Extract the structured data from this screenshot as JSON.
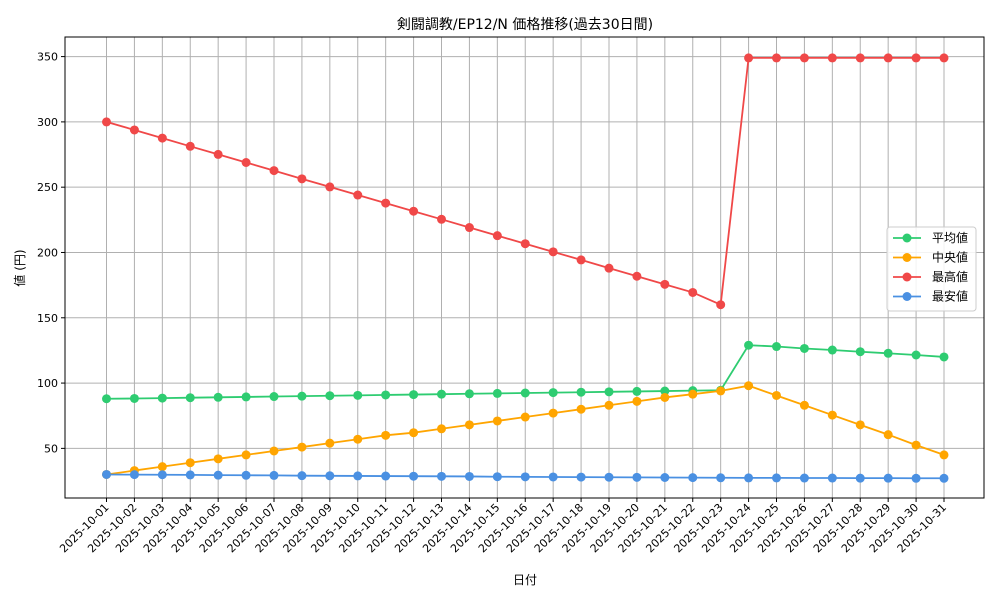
{
  "chart_data": {
    "type": "line",
    "title": "剣闘調教/EP12/N 価格推移(過去30日間)",
    "xlabel": "日付",
    "ylabel": "値 (円)",
    "categories": [
      "2025-10-01",
      "2025-10-02",
      "2025-10-03",
      "2025-10-04",
      "2025-10-05",
      "2025-10-06",
      "2025-10-07",
      "2025-10-08",
      "2025-10-09",
      "2025-10-10",
      "2025-10-11",
      "2025-10-12",
      "2025-10-13",
      "2025-10-14",
      "2025-10-15",
      "2025-10-16",
      "2025-10-17",
      "2025-10-18",
      "2025-10-19",
      "2025-10-20",
      "2025-10-21",
      "2025-10-22",
      "2025-10-23",
      "2025-10-24",
      "2025-10-25",
      "2025-10-26",
      "2025-10-27",
      "2025-10-28",
      "2025-10-29",
      "2025-10-30",
      "2025-10-31"
    ],
    "y_ticks": [
      50,
      100,
      150,
      200,
      250,
      300,
      350
    ],
    "ylim": [
      12,
      365
    ],
    "grid": true,
    "legend_position": "right",
    "series": [
      {
        "name": "平均値",
        "color": "#2ecc71",
        "values": [
          88,
          88.2,
          88.5,
          88.8,
          89.1,
          89.4,
          89.7,
          90,
          90.3,
          90.6,
          90.9,
          91.2,
          91.5,
          91.8,
          92.1,
          92.4,
          92.7,
          93,
          93.3,
          93.6,
          93.9,
          94.2,
          94.5,
          129,
          128,
          126.5,
          125.3,
          124,
          122.8,
          121.5,
          120
        ]
      },
      {
        "name": "中央値",
        "color": "#ffa500",
        "values": [
          30,
          33,
          36,
          39,
          42,
          45,
          48,
          51,
          54,
          57,
          60,
          62,
          65,
          68,
          71,
          74,
          77,
          80,
          83,
          86,
          89,
          91.5,
          94,
          98,
          90.5,
          83,
          75.5,
          68,
          60.5,
          52.5,
          45
        ]
      },
      {
        "name": "最高値",
        "color": "#f04848",
        "values": [
          300,
          293.8,
          287.6,
          281.3,
          275.1,
          268.9,
          262.7,
          256.4,
          250.2,
          244,
          237.8,
          231.6,
          225.4,
          219.1,
          212.9,
          206.7,
          200.5,
          194.3,
          188,
          181.8,
          175.6,
          169.4,
          160,
          349,
          349,
          349,
          349,
          349,
          349,
          349,
          349
        ]
      },
      {
        "name": "最安値",
        "color": "#4a90e2",
        "values": [
          30,
          29.9,
          29.8,
          29.7,
          29.5,
          29.4,
          29.3,
          29.1,
          29,
          28.9,
          28.8,
          28.7,
          28.6,
          28.5,
          28.3,
          28.2,
          28.1,
          28,
          27.9,
          27.8,
          27.7,
          27.6,
          27.5,
          27.4,
          27.4,
          27.3,
          27.3,
          27.2,
          27.2,
          27.1,
          27.1
        ]
      }
    ]
  }
}
